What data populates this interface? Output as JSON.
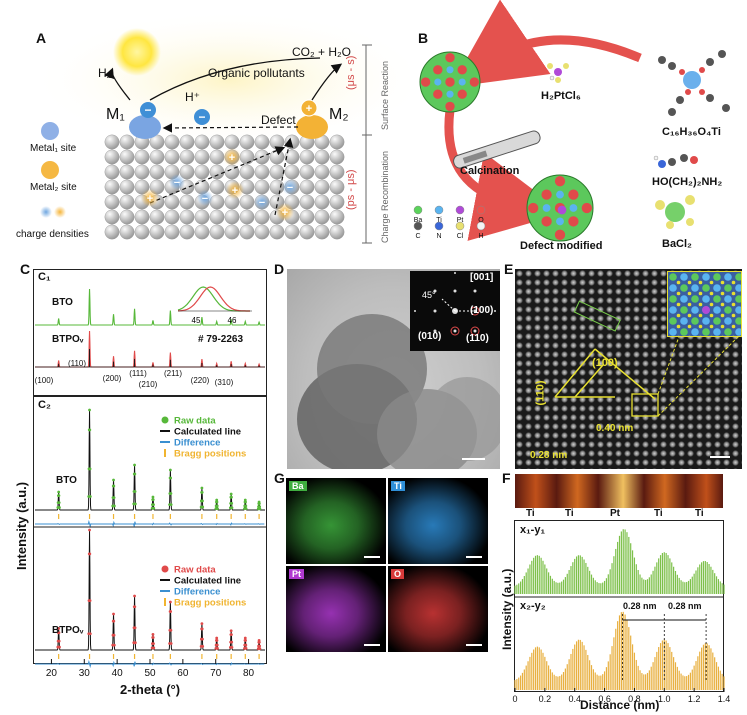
{
  "panel_a": {
    "letter": "A",
    "h2": "H₂",
    "co2": "CO₂ + H₂O",
    "pollutants": "Organic pollutants",
    "hplus": "H⁺",
    "m1": "M₁",
    "m2": "M₂",
    "defect": "Defect",
    "legend_metal1": "Metal₁ site",
    "legend_metal2": "Metal₂ site",
    "legend_charge": "charge densities",
    "time_top": "(μs - s)",
    "time_bottom": "(ps - μs)",
    "side_top": "Surface Reaction",
    "side_bottom": "Charge Recombination"
  },
  "panel_b": {
    "letter": "B",
    "h2ptcl6": "H₂PtCl₆",
    "c16": "C₁₆H₃₆O₄Ti",
    "ethanolamine": "HO(CH₂)₂NH₂",
    "bacl2": "BaCl₂",
    "calcination": "Calcination",
    "defect_modified": "Defect modified",
    "legend": [
      "Ba",
      "Ti",
      "Pt",
      "O",
      "C",
      "N",
      "Cl",
      "H"
    ],
    "legend_colors": [
      "#5bd35b",
      "#5ab4f0",
      "#b04ad8",
      "#f0504a",
      "#555555",
      "#3a66d8",
      "#e8e070",
      "#f4f4f4"
    ]
  },
  "panel_c": {
    "letter": "C",
    "c1": "C₁",
    "c2": "C₂",
    "bto": "BTO",
    "btpov": "BTPOᵥ",
    "pdf": "# 79-2263",
    "inset_ticks": [
      "45",
      "46"
    ],
    "hkl": [
      "(100)",
      "(110)",
      "(200)",
      "(111)",
      "(210)",
      "(211)",
      "(220)",
      "(310)"
    ],
    "ylabel": "Intensity (a.u.)",
    "xlabel": "2-theta (°)",
    "x_ticks": [
      "20",
      "30",
      "40",
      "50",
      "60",
      "70",
      "80"
    ],
    "legend_raw": "Raw data",
    "legend_calc": "Calculated line",
    "legend_diff": "Difference",
    "legend_bragg": "Bragg positions",
    "green": "#57b83a",
    "red": "#e04a4a",
    "blue": "#3a8fd0",
    "gold": "#f0b430"
  },
  "panel_d": {
    "letter": "D",
    "zone": "[001]",
    "angle": "45°",
    "spots": [
      "(100)",
      "(010)",
      "(110)"
    ]
  },
  "panel_e": {
    "letter": "E",
    "d100": "(100)",
    "d110": "(110)",
    "dist1": "0.40 nm",
    "dist2": "0.28 nm"
  },
  "panel_g": {
    "letter": "G",
    "maps": [
      {
        "label": "Ba",
        "color": "#3fae3f"
      },
      {
        "label": "Ti",
        "color": "#2f8fd8"
      },
      {
        "label": "Pt",
        "color": "#b03ad0"
      },
      {
        "label": "O",
        "color": "#d83a3a"
      }
    ]
  },
  "panel_f": {
    "letter": "F",
    "atoms": [
      "Ti",
      "Ti",
      "Pt",
      "Ti",
      "Ti"
    ],
    "trace1": "x₁-y₁",
    "trace2": "x₂-y₂",
    "ylabel": "Intensity (a.u.)",
    "xlabel": "Distance (nm)",
    "x_ticks": [
      "0",
      "0.2",
      "0.4",
      "0.6",
      "0.8",
      "1.0",
      "1.2",
      "1.4"
    ],
    "spacing1": "0.28 nm",
    "spacing2": "0.28 nm"
  },
  "chart_data": [
    {
      "type": "line",
      "title": "C1",
      "series": [
        {
          "name": "BTO"
        },
        {
          "name": "BTPOᵥ"
        }
      ],
      "x_peaks": [
        22.2,
        31.6,
        38.9,
        45.3,
        50.9,
        56.2,
        65.8,
        70.3,
        74.7,
        79.0,
        83.2
      ],
      "reference_card": "# 79-2263",
      "hkl_positions": {
        "(100)": 22.2,
        "(110)": 31.6,
        "(200)": 45.3,
        "(111)": 38.9,
        "(210)": 50.9,
        "(211)": 56.2,
        "(220)": 65.8,
        "(310)": 74.7
      },
      "xlim": [
        15,
        85
      ]
    },
    {
      "type": "line",
      "title": "C2",
      "series": [
        {
          "name": "Raw data"
        },
        {
          "name": "Calculated line"
        },
        {
          "name": "Difference"
        },
        {
          "name": "Bragg positions"
        }
      ],
      "x_peaks": [
        22.2,
        31.6,
        38.9,
        45.3,
        50.9,
        56.2,
        65.8,
        70.3,
        74.7,
        79.0,
        83.2
      ],
      "xlabel": "2-theta (°)",
      "ylabel": "Intensity (a.u.)",
      "xlim": [
        15,
        85
      ]
    },
    {
      "type": "bar",
      "title": "F",
      "series": [
        {
          "name": "x₁-y₁"
        },
        {
          "name": "x₂-y₂"
        }
      ],
      "peaks_x1y1": [
        0.15,
        0.43,
        0.73,
        1.0,
        1.27
      ],
      "peaks_x2y2": [
        0.15,
        0.43,
        0.72,
        1.0,
        1.28
      ],
      "xlabel": "Distance (nm)",
      "ylabel": "Intensity (a.u.)",
      "xlim": [
        0,
        1.4
      ]
    }
  ]
}
